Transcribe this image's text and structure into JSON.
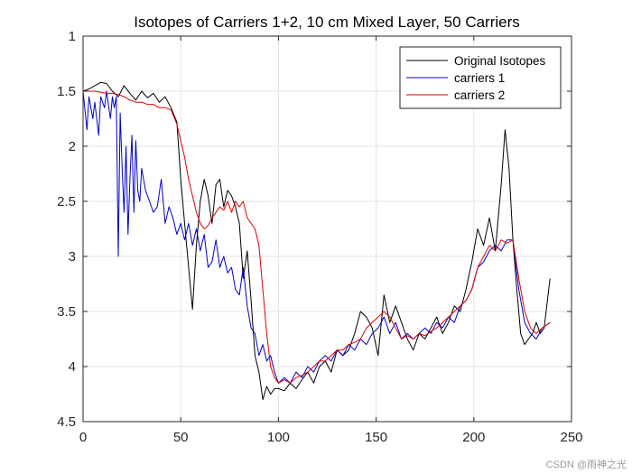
{
  "chart_data": {
    "type": "line",
    "title": "Isotopes of Carriers 1+2, 10 cm Mixed Layer, 50 Carriers",
    "xlabel": "",
    "ylabel": "",
    "xlim": [
      0,
      250
    ],
    "ylim": [
      1,
      4.5
    ],
    "y_reversed": true,
    "grid": true,
    "legend_position": "top-right",
    "x_ticks": [
      0,
      50,
      100,
      150,
      200,
      250
    ],
    "y_ticks": [
      1,
      1.5,
      2,
      2.5,
      3,
      3.5,
      4,
      4.5
    ],
    "x_tick_labels": [
      "0",
      "50",
      "100",
      "150",
      "200",
      "250"
    ],
    "y_tick_labels": [
      "1",
      "1.5",
      "2",
      "2.5",
      "3",
      "3.5",
      "4",
      "4.5"
    ],
    "series": [
      {
        "name": "Original Isotopes",
        "color": "#000000",
        "x": [
          0,
          3,
          6,
          9,
          12,
          15,
          18,
          21,
          24,
          27,
          30,
          33,
          36,
          39,
          42,
          45,
          48,
          50,
          52,
          54,
          56,
          58,
          60,
          62,
          64,
          66,
          68,
          70,
          72,
          74,
          76,
          78,
          80,
          82,
          84,
          86,
          88,
          90,
          92,
          94,
          96,
          98,
          100,
          103,
          106,
          109,
          112,
          115,
          118,
          121,
          124,
          127,
          130,
          133,
          136,
          139,
          142,
          145,
          148,
          151,
          154,
          157,
          160,
          163,
          166,
          169,
          172,
          175,
          178,
          181,
          184,
          187,
          190,
          193,
          196,
          199,
          202,
          205,
          208,
          211,
          214,
          216,
          218,
          220,
          222,
          224,
          226,
          228,
          230,
          232,
          234,
          236,
          239
        ],
        "values": [
          1.5,
          1.48,
          1.45,
          1.42,
          1.43,
          1.5,
          1.55,
          1.45,
          1.52,
          1.58,
          1.5,
          1.56,
          1.52,
          1.6,
          1.55,
          1.65,
          1.78,
          2.3,
          2.7,
          3.1,
          3.48,
          2.9,
          2.5,
          2.3,
          2.45,
          2.7,
          2.35,
          2.3,
          2.55,
          2.4,
          2.45,
          2.55,
          2.7,
          3.2,
          2.95,
          3.4,
          3.9,
          4.05,
          4.3,
          4.18,
          4.25,
          4.2,
          4.2,
          4.22,
          4.15,
          4.2,
          4.12,
          4.05,
          4.15,
          4.0,
          3.95,
          4.05,
          3.85,
          3.9,
          3.85,
          3.7,
          3.5,
          3.55,
          3.65,
          3.9,
          3.35,
          3.6,
          3.45,
          3.6,
          3.75,
          3.85,
          3.7,
          3.75,
          3.65,
          3.55,
          3.7,
          3.6,
          3.45,
          3.5,
          3.3,
          3.05,
          2.75,
          2.9,
          2.65,
          2.95,
          2.35,
          1.85,
          2.2,
          2.85,
          3.3,
          3.7,
          3.8,
          3.75,
          3.7,
          3.6,
          3.7,
          3.65,
          3.2
        ]
      },
      {
        "name": "carriers 1",
        "color": "#0000cc",
        "x": [
          0,
          2,
          3,
          5,
          6,
          8,
          9,
          11,
          12,
          14,
          15,
          16,
          17,
          18,
          19,
          20,
          21,
          22,
          23,
          24,
          25,
          26,
          27,
          28,
          29,
          30,
          32,
          34,
          36,
          38,
          40,
          42,
          44,
          46,
          48,
          50,
          52,
          54,
          56,
          58,
          60,
          62,
          64,
          66,
          68,
          70,
          72,
          74,
          76,
          78,
          80,
          82,
          84,
          86,
          88,
          90,
          92,
          94,
          96,
          98,
          100,
          103,
          106,
          109,
          112,
          115,
          118,
          121,
          124,
          127,
          130,
          133,
          136,
          139,
          142,
          145,
          148,
          151,
          154,
          157,
          160,
          163,
          166,
          169,
          172,
          175,
          178,
          181,
          184,
          187,
          190,
          193,
          196,
          199,
          202,
          205,
          208,
          211,
          214,
          217,
          220,
          223,
          226,
          229,
          232,
          235,
          239
        ],
        "values": [
          1.5,
          1.85,
          1.55,
          1.75,
          1.6,
          1.9,
          1.55,
          1.65,
          1.5,
          1.75,
          1.55,
          1.65,
          1.55,
          3.0,
          1.7,
          2.2,
          2.6,
          2.0,
          2.8,
          2.3,
          1.9,
          2.6,
          1.95,
          2.4,
          2.5,
          2.2,
          2.4,
          2.5,
          2.6,
          2.55,
          2.3,
          2.7,
          2.55,
          2.65,
          2.8,
          2.7,
          2.85,
          2.7,
          2.9,
          2.75,
          2.95,
          2.8,
          3.1,
          3.05,
          2.85,
          3.1,
          3.0,
          3.15,
          3.1,
          3.3,
          3.35,
          3.1,
          3.45,
          3.65,
          3.7,
          3.9,
          3.8,
          3.95,
          3.9,
          4.05,
          4.15,
          4.1,
          4.15,
          4.05,
          4.1,
          4.0,
          4.05,
          3.95,
          3.9,
          3.95,
          3.85,
          3.9,
          3.8,
          3.85,
          3.75,
          3.8,
          3.7,
          3.65,
          3.55,
          3.7,
          3.6,
          3.75,
          3.7,
          3.75,
          3.7,
          3.65,
          3.7,
          3.6,
          3.65,
          3.55,
          3.6,
          3.45,
          3.4,
          3.3,
          3.1,
          3.05,
          2.95,
          2.9,
          2.95,
          2.85,
          2.85,
          3.3,
          3.6,
          3.7,
          3.75,
          3.65,
          3.6
        ]
      },
      {
        "name": "carriers 2",
        "color": "#e00000",
        "x": [
          0,
          3,
          6,
          9,
          12,
          15,
          18,
          21,
          24,
          27,
          30,
          33,
          36,
          39,
          42,
          45,
          48,
          50,
          52,
          54,
          56,
          58,
          60,
          62,
          64,
          66,
          68,
          70,
          72,
          74,
          76,
          78,
          80,
          82,
          84,
          86,
          88,
          90,
          92,
          94,
          96,
          98,
          100,
          103,
          106,
          109,
          112,
          115,
          118,
          121,
          124,
          127,
          130,
          133,
          136,
          139,
          142,
          145,
          148,
          151,
          154,
          157,
          160,
          163,
          166,
          169,
          172,
          175,
          178,
          181,
          184,
          187,
          190,
          193,
          196,
          199,
          202,
          205,
          208,
          211,
          214,
          217,
          220,
          223,
          226,
          229,
          232,
          235,
          239
        ],
        "values": [
          1.5,
          1.5,
          1.5,
          1.51,
          1.52,
          1.52,
          1.53,
          1.55,
          1.58,
          1.6,
          1.6,
          1.62,
          1.62,
          1.65,
          1.65,
          1.67,
          1.8,
          1.95,
          2.1,
          2.3,
          2.45,
          2.6,
          2.7,
          2.75,
          2.72,
          2.65,
          2.6,
          2.55,
          2.58,
          2.5,
          2.6,
          2.5,
          2.55,
          2.5,
          2.65,
          2.7,
          2.75,
          2.9,
          3.3,
          3.7,
          4.0,
          4.1,
          4.15,
          4.12,
          4.15,
          4.1,
          4.08,
          4.05,
          4.0,
          3.95,
          3.95,
          3.9,
          3.85,
          3.85,
          3.8,
          3.78,
          3.75,
          3.65,
          3.6,
          3.55,
          3.5,
          3.55,
          3.65,
          3.75,
          3.72,
          3.75,
          3.7,
          3.72,
          3.68,
          3.65,
          3.6,
          3.55,
          3.5,
          3.45,
          3.4,
          3.3,
          3.1,
          3.0,
          2.9,
          2.95,
          2.85,
          2.88,
          2.85,
          3.2,
          3.5,
          3.65,
          3.7,
          3.65,
          3.6
        ]
      }
    ]
  },
  "watermark": "CSDN @雨神之光"
}
